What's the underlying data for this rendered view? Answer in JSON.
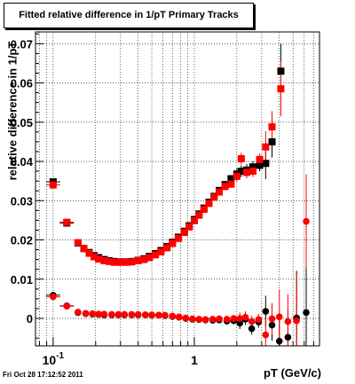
{
  "title": "Fitted relative difference in 1/pT  Primary Tracks",
  "footer": "Fri Oct 28 17:12:52 2011",
  "chart_data": {
    "type": "scatter",
    "title": "Fitted relative difference in 1/pT  Primary Tracks",
    "xlabel": "pT (GeV/c)",
    "ylabel": "relative difference in 1/pT",
    "xscale": "log",
    "xlim": [
      0.075,
      7.7
    ],
    "ylim": [
      -0.007,
      0.073
    ],
    "y_ticks": [
      0,
      0.01,
      0.02,
      0.03,
      0.04,
      0.05,
      0.06,
      0.07
    ],
    "y_tick_labels": [
      "0",
      "0.01",
      "0.02",
      "0.03",
      "0.04",
      "0.05",
      "0.06",
      "0.07"
    ],
    "x_ticks": [
      0.1,
      1
    ],
    "x_tick_labels": [
      "10-1",
      "1"
    ],
    "grid": true,
    "series": [
      {
        "color": "#000000",
        "marker": "square",
        "points": [
          [
            0.1,
            0.0348
          ],
          [
            0.125,
            0.0243
          ],
          [
            0.15,
            0.0192
          ],
          [
            0.165,
            0.0178
          ],
          [
            0.18,
            0.0168
          ],
          [
            0.195,
            0.016
          ],
          [
            0.21,
            0.0155
          ],
          [
            0.23,
            0.015
          ],
          [
            0.25,
            0.0147
          ],
          [
            0.27,
            0.0145
          ],
          [
            0.3,
            0.0144
          ],
          [
            0.33,
            0.0144
          ],
          [
            0.36,
            0.0145
          ],
          [
            0.4,
            0.0148
          ],
          [
            0.44,
            0.0152
          ],
          [
            0.48,
            0.0158
          ],
          [
            0.53,
            0.0165
          ],
          [
            0.58,
            0.0173
          ],
          [
            0.64,
            0.0183
          ],
          [
            0.7,
            0.0194
          ],
          [
            0.77,
            0.0207
          ],
          [
            0.85,
            0.0222
          ],
          [
            0.92,
            0.0236
          ],
          [
            1.0,
            0.0252
          ],
          [
            1.08,
            0.0266
          ],
          [
            1.17,
            0.0281
          ],
          [
            1.27,
            0.0296
          ],
          [
            1.38,
            0.0311
          ],
          [
            1.5,
            0.0326
          ],
          [
            1.65,
            0.0341
          ],
          [
            1.82,
            0.0356
          ],
          [
            2.0,
            0.0368
          ],
          [
            2.15,
            0.0375
          ],
          [
            2.35,
            0.0378
          ],
          [
            2.6,
            0.0386
          ],
          [
            2.9,
            0.039
          ],
          [
            3.2,
            0.0395
          ],
          [
            3.55,
            0.045
          ],
          [
            4.1,
            0.063
          ]
        ]
      },
      {
        "color": "#ff0000",
        "marker": "square",
        "points": [
          [
            0.1,
            0.034
          ],
          [
            0.125,
            0.0245
          ],
          [
            0.15,
            0.0193
          ],
          [
            0.165,
            0.0178
          ],
          [
            0.18,
            0.0166
          ],
          [
            0.195,
            0.0157
          ],
          [
            0.21,
            0.0151
          ],
          [
            0.23,
            0.0147
          ],
          [
            0.25,
            0.0145
          ],
          [
            0.27,
            0.0143
          ],
          [
            0.3,
            0.0143
          ],
          [
            0.33,
            0.0143
          ],
          [
            0.36,
            0.0144
          ],
          [
            0.4,
            0.0147
          ],
          [
            0.44,
            0.015
          ],
          [
            0.48,
            0.0155
          ],
          [
            0.53,
            0.0162
          ],
          [
            0.58,
            0.017
          ],
          [
            0.64,
            0.018
          ],
          [
            0.7,
            0.0191
          ],
          [
            0.77,
            0.0204
          ],
          [
            0.85,
            0.0219
          ],
          [
            0.92,
            0.0233
          ],
          [
            1.0,
            0.0249
          ],
          [
            1.08,
            0.0263
          ],
          [
            1.17,
            0.0278
          ],
          [
            1.27,
            0.0293
          ],
          [
            1.38,
            0.0309
          ],
          [
            1.5,
            0.0322
          ],
          [
            1.65,
            0.0336
          ],
          [
            1.82,
            0.0342
          ],
          [
            2.0,
            0.0362
          ],
          [
            2.15,
            0.0407
          ],
          [
            2.35,
            0.0372
          ],
          [
            2.6,
            0.0375
          ],
          [
            2.9,
            0.0405
          ],
          [
            3.2,
            0.0437
          ],
          [
            3.55,
            0.0488
          ],
          [
            4.1,
            0.0585
          ]
        ]
      },
      {
        "color": "#000000",
        "marker": "circle",
        "points": [
          [
            0.1,
            0.0059
          ],
          [
            0.125,
            0.0032
          ],
          [
            0.15,
            0.0015
          ],
          [
            0.17,
            0.0012
          ],
          [
            0.19,
            0.0011
          ],
          [
            0.21,
            0.001
          ],
          [
            0.23,
            0.0009
          ],
          [
            0.26,
            0.0009
          ],
          [
            0.29,
            0.0009
          ],
          [
            0.32,
            0.0009
          ],
          [
            0.36,
            0.0009
          ],
          [
            0.4,
            0.0009
          ],
          [
            0.45,
            0.0009
          ],
          [
            0.5,
            0.0008
          ],
          [
            0.56,
            0.0008
          ],
          [
            0.62,
            0.0007
          ],
          [
            0.7,
            0.0005
          ],
          [
            0.78,
            0.0003
          ],
          [
            0.87,
            0.0
          ],
          [
            0.97,
            -0.0002
          ],
          [
            1.08,
            -0.0003
          ],
          [
            1.2,
            -0.0004
          ],
          [
            1.35,
            -0.0005
          ],
          [
            1.5,
            -0.0004
          ],
          [
            1.7,
            -0.0007
          ],
          [
            1.9,
            -0.0006
          ],
          [
            2.1,
            -0.0012
          ],
          [
            2.3,
            -0.0002
          ],
          [
            2.55,
            -0.0026
          ],
          [
            2.85,
            -0.0009
          ],
          [
            3.2,
            0.0018
          ],
          [
            3.55,
            -0.0017
          ],
          [
            4.0,
            -0.0058
          ],
          [
            4.6,
            -0.0048
          ],
          [
            5.3,
            0.0001
          ],
          [
            6.2,
            0.0015
          ]
        ]
      },
      {
        "color": "#ff0000",
        "marker": "circle",
        "points": [
          [
            0.1,
            0.0055
          ],
          [
            0.125,
            0.0031
          ],
          [
            0.15,
            0.0016
          ],
          [
            0.17,
            0.0013
          ],
          [
            0.19,
            0.0012
          ],
          [
            0.21,
            0.0011
          ],
          [
            0.23,
            0.0011
          ],
          [
            0.26,
            0.001
          ],
          [
            0.29,
            0.001
          ],
          [
            0.32,
            0.001
          ],
          [
            0.36,
            0.001
          ],
          [
            0.4,
            0.001
          ],
          [
            0.45,
            0.0009
          ],
          [
            0.5,
            0.0009
          ],
          [
            0.56,
            0.0008
          ],
          [
            0.62,
            0.0008
          ],
          [
            0.7,
            0.0006
          ],
          [
            0.78,
            0.0004
          ],
          [
            0.87,
            0.0001
          ],
          [
            0.97,
            -0.0001
          ],
          [
            1.08,
            -0.0002
          ],
          [
            1.2,
            -0.0003
          ],
          [
            1.35,
            -0.0002
          ],
          [
            1.5,
            -0.0001
          ],
          [
            1.7,
            -0.0002
          ],
          [
            1.9,
            0.0
          ],
          [
            2.1,
            0.0
          ],
          [
            2.3,
            0.0003
          ],
          [
            2.55,
            -0.0008
          ],
          [
            2.85,
            -0.0003
          ],
          [
            3.2,
            -0.0042
          ],
          [
            3.55,
            -0.0001
          ],
          [
            4.0,
            0.0004
          ],
          [
            4.6,
            -0.0008
          ],
          [
            5.3,
            -0.0006
          ],
          [
            6.2,
            0.0247
          ]
        ]
      }
    ]
  }
}
